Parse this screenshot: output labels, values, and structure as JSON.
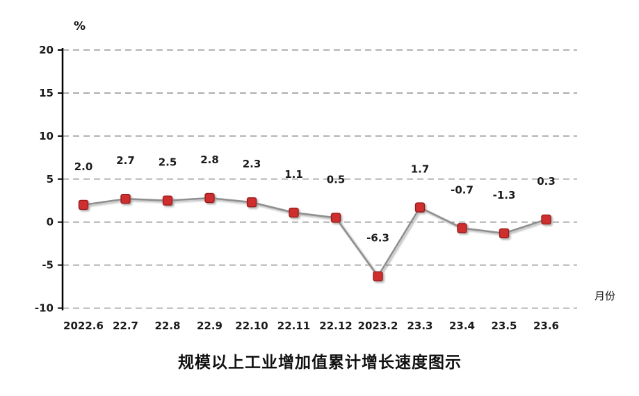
{
  "chart": {
    "title": "规模以上工业增加值累计增长速度图示",
    "y_axis_unit": "%",
    "x_axis_label": "月份"
  },
  "chart_data": {
    "type": "line",
    "title": "规模以上工业增加值累计增长速度图示",
    "ylabel": "%",
    "xlabel": "月份",
    "categories": [
      "2022.6",
      "22.7",
      "22.8",
      "22.9",
      "22.10",
      "22.11",
      "22.12",
      "2023.2",
      "23.3",
      "23.4",
      "23.5",
      "23.6"
    ],
    "values": [
      2.0,
      2.7,
      2.5,
      2.8,
      2.3,
      1.1,
      0.5,
      -6.3,
      1.7,
      -0.7,
      -1.3,
      0.3
    ],
    "data_labels": [
      "2.0",
      "2.7",
      "2.5",
      "2.8",
      "2.3",
      "1.1",
      "0.5",
      "-6.3",
      "1.7",
      "-0.7",
      "-1.3",
      "0.3"
    ],
    "ylim": [
      -10,
      20
    ],
    "ytick_step": 5,
    "yticks": [
      20,
      15,
      10,
      5,
      0,
      -5,
      -10
    ],
    "grid": true,
    "legend": "none",
    "line_color": "#8f8f8f",
    "marker_fill": "#cf2f2f",
    "marker_border": "#9a1f1f",
    "gridline_color": "#9a9a9a",
    "axis_color": "#000000",
    "text_color": "#1a1a1a"
  }
}
